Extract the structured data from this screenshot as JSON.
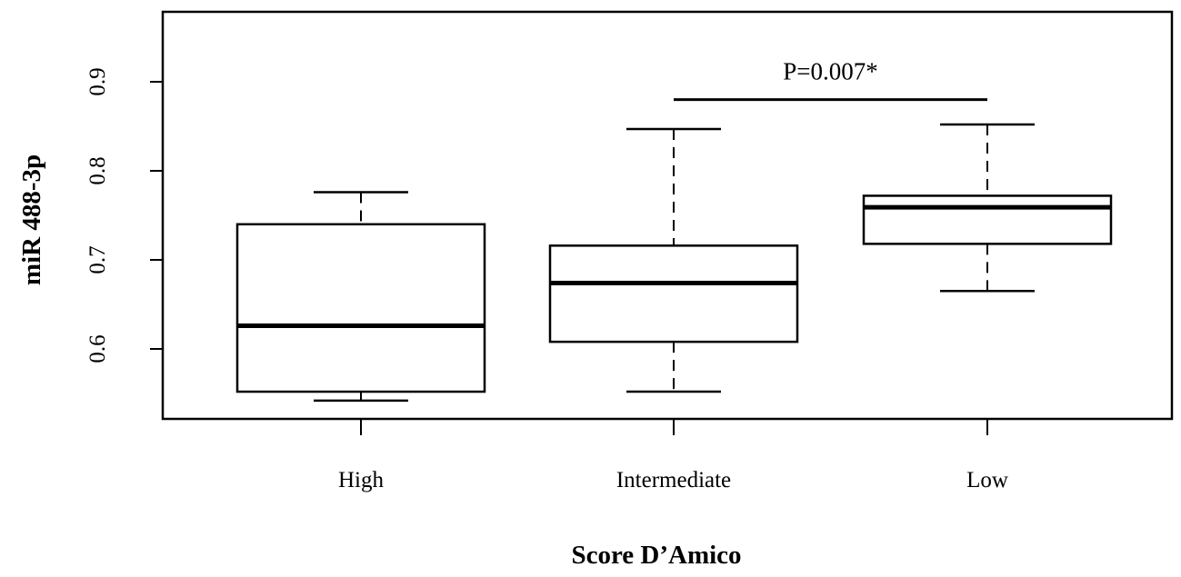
{
  "chart_data": {
    "type": "boxplot",
    "title": "",
    "xlabel": "Score D’Amico",
    "ylabel": "miR 488-3p",
    "ylim": [
      0.52,
      0.97
    ],
    "yticks": [
      "0.6",
      "0.7",
      "0.8",
      "0.9"
    ],
    "categories": [
      "High",
      "Intermediate",
      "Low"
    ],
    "boxes": [
      {
        "category": "High",
        "whisker_low": 0.542,
        "q1": 0.552,
        "median": 0.626,
        "q3": 0.74,
        "whisker_high": 0.776
      },
      {
        "category": "Intermediate",
        "whisker_low": 0.552,
        "q1": 0.608,
        "median": 0.674,
        "q3": 0.716,
        "whisker_high": 0.847
      },
      {
        "category": "Low",
        "whisker_low": 0.665,
        "q1": 0.718,
        "median": 0.759,
        "q3": 0.772,
        "whisker_high": 0.852
      }
    ],
    "annotation": {
      "text": "P=0.007*",
      "from_category": "Intermediate",
      "to_category": "Low",
      "y": 0.88
    },
    "grid": false,
    "legend": "none"
  }
}
